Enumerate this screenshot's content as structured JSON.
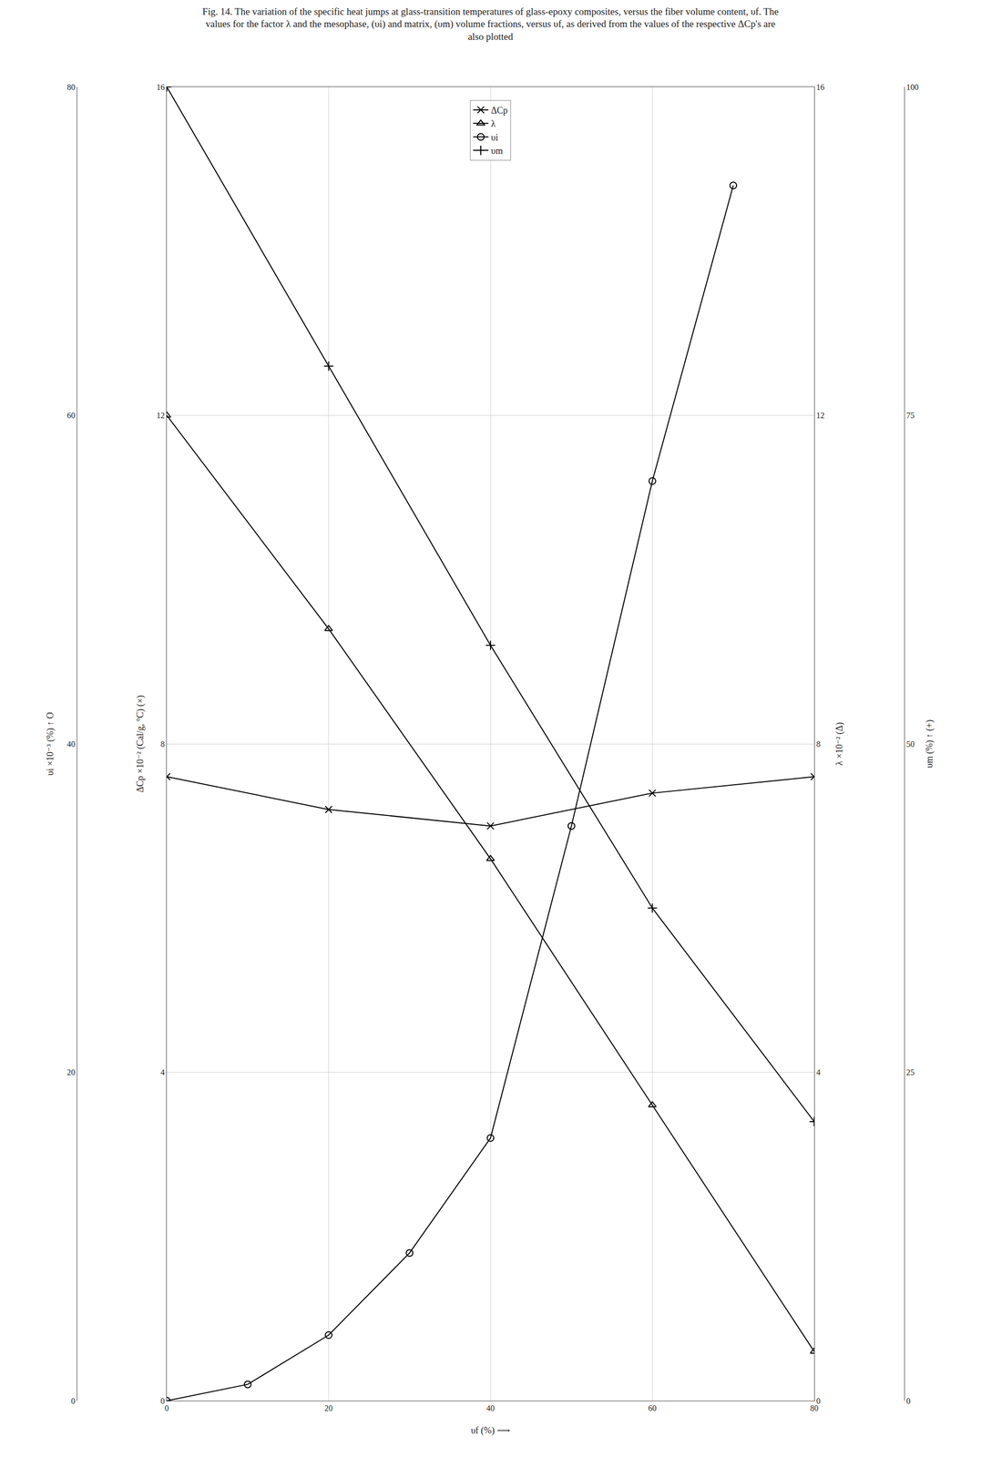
{
  "chart_data": {
    "type": "line",
    "title": "Fig. 14. The variation of the specific heat jumps at glass-transition temperatures of glass-epoxy composites, versus the fiber volume content, υf. The values for the factor λ and the mesophase, (υi) and matrix, (υm) volume fractions, versus υf, as derived from the values of the respective ΔCp's are also plotted",
    "xlabel": "υf (%) ⟶",
    "ylabel": "υi ×10⁻³ (%) ↑ O",
    "y3label": "ΔCp ×10⁻² (Cal/g, °C) (×)",
    "y4label": "λ ×10⁻² (Δ)",
    "y2label": "υm (%) ↑ (+)",
    "xlim": [
      0,
      80
    ],
    "xticks": [
      0,
      20,
      40,
      60,
      80
    ],
    "ylim": [
      0,
      80
    ],
    "yticks": [
      0,
      20,
      40,
      60,
      80
    ],
    "y3lim": [
      0,
      16
    ],
    "y3ticks": [
      0,
      4,
      8,
      12,
      16
    ],
    "y2lim": [
      0,
      100
    ],
    "y2ticks": [
      0,
      25,
      50,
      75,
      100
    ],
    "y4lim": [
      0,
      16
    ],
    "y4ticks": [
      0,
      4,
      8,
      12,
      16
    ],
    "grid": true,
    "legend": "upper center",
    "series": [
      {
        "name": "ΔCp",
        "color": "#000000",
        "marker": "x-thin-open",
        "x": [
          0,
          20,
          40,
          60,
          80
        ],
        "values": [
          38,
          36,
          35,
          37,
          38
        ]
      },
      {
        "name": "λ",
        "color": "#000000",
        "marker": "triangle-up-open",
        "x": [
          0,
          20,
          40,
          60,
          80
        ],
        "values": [
          60,
          47,
          33,
          18,
          3
        ]
      },
      {
        "name": "υi",
        "color": "#000000",
        "marker": "circle-open",
        "x": [
          0,
          10,
          20,
          30,
          40,
          50,
          60,
          70
        ],
        "values": [
          0,
          1,
          4,
          9,
          16,
          35,
          56,
          74
        ]
      },
      {
        "name": "υm",
        "color": "#000000",
        "marker": "cross-thin-open",
        "x": [
          0,
          20,
          40,
          60,
          80
        ],
        "values": [
          80,
          63,
          46,
          30,
          17
        ]
      }
    ]
  }
}
